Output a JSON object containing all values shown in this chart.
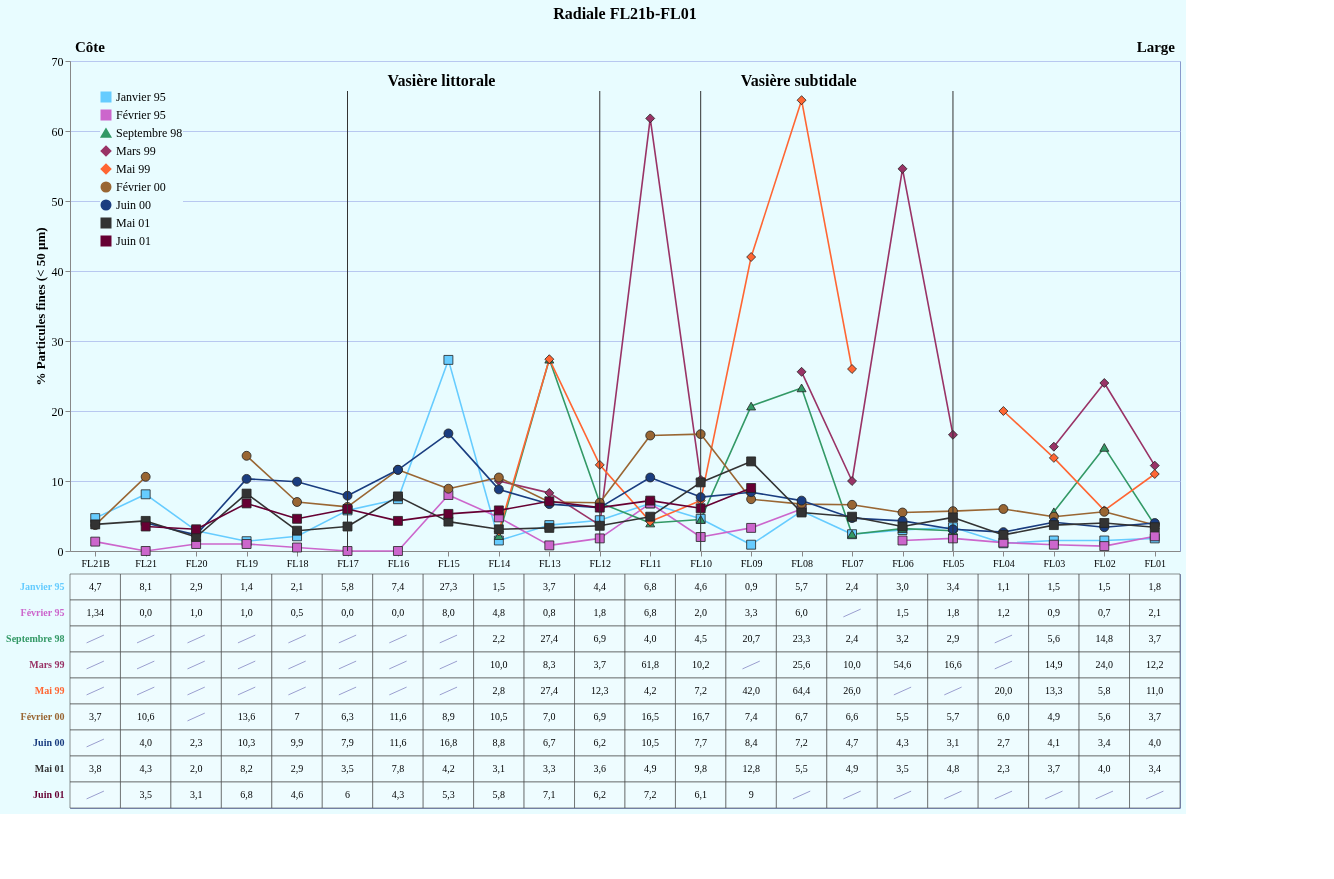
{
  "chart_data": {
    "type": "line",
    "title": "Radiale FL21b-FL01",
    "ylabel": "% Particules fines (< 50 µm)",
    "annotations": [
      "Côte",
      "Large"
    ],
    "categories": [
      "FL21B",
      "FL21",
      "FL20",
      "FL19",
      "FL18",
      "FL17",
      "FL16",
      "FL15",
      "FL14",
      "FL13",
      "FL12",
      "FL11",
      "FL10",
      "FL09",
      "FL08",
      "FL07",
      "FL06",
      "FL05",
      "FL04",
      "FL03",
      "FL02",
      "FL01"
    ],
    "series": [
      {
        "name": "Janvier 95",
        "color": "#66ccff",
        "marker": "square",
        "values": [
          4.7,
          8.1,
          2.9,
          1.4,
          2.1,
          5.8,
          7.4,
          27.3,
          1.5,
          3.7,
          4.4,
          6.8,
          4.6,
          0.9,
          5.7,
          2.4,
          3.0,
          3.4,
          1.1,
          1.5,
          1.5,
          1.8
        ],
        "value_labels": [
          "4,7",
          "8,1",
          "2,9",
          "1,4",
          "2,1",
          "5,8",
          "7,4",
          "27,3",
          "1,5",
          "3,7",
          "4,4",
          "6,8",
          "4,6",
          "0,9",
          "5,7",
          "2,4",
          "3,0",
          "3,4",
          "1,1",
          "1,5",
          "1,5",
          "1,8"
        ]
      },
      {
        "name": "Février 95",
        "color": "#cc66cc",
        "marker": "square",
        "values": [
          1.34,
          0.0,
          1.0,
          1.0,
          0.5,
          0.0,
          0.0,
          8.0,
          4.8,
          0.8,
          1.8,
          6.8,
          2.0,
          3.3,
          6.0,
          null,
          1.5,
          1.8,
          1.2,
          0.9,
          0.7,
          2.1
        ],
        "value_labels": [
          "1,34",
          "0,0",
          "1,0",
          "1,0",
          "0,5",
          "0,0",
          "0,0",
          "8,0",
          "4,8",
          "0,8",
          "1,8",
          "6,8",
          "2,0",
          "3,3",
          "6,0",
          null,
          "1,5",
          "1,8",
          "1,2",
          "0,9",
          "0,7",
          "2,1"
        ]
      },
      {
        "name": "Septembre 98",
        "color": "#339966",
        "marker": "triangle",
        "values": [
          null,
          null,
          null,
          null,
          null,
          null,
          null,
          null,
          2.2,
          27.4,
          6.9,
          4.0,
          4.5,
          20.7,
          23.3,
          2.4,
          3.2,
          2.9,
          null,
          5.6,
          14.8,
          3.7
        ],
        "value_labels": [
          null,
          null,
          null,
          null,
          null,
          null,
          null,
          null,
          "2,2",
          "27,4",
          "6,9",
          "4,0",
          "4,5",
          "20,7",
          "23,3",
          "2,4",
          "3,2",
          "2,9",
          null,
          "5,6",
          "14,8",
          "3,7"
        ]
      },
      {
        "name": "Mars 99",
        "color": "#993366",
        "marker": "diamond",
        "values": [
          null,
          null,
          null,
          null,
          null,
          null,
          null,
          null,
          10.0,
          8.3,
          3.7,
          61.8,
          10.2,
          null,
          25.6,
          10.0,
          54.6,
          16.6,
          null,
          14.9,
          24.0,
          12.2
        ],
        "value_labels": [
          null,
          null,
          null,
          null,
          null,
          null,
          null,
          null,
          "10,0",
          "8,3",
          "3,7",
          "61,8",
          "10,2",
          null,
          "25,6",
          "10,0",
          "54,6",
          "16,6",
          null,
          "14,9",
          "24,0",
          "12,2"
        ]
      },
      {
        "name": "Mai 99",
        "color": "#ff6633",
        "marker": "diamond",
        "values": [
          null,
          null,
          null,
          null,
          null,
          null,
          null,
          null,
          2.8,
          27.4,
          12.3,
          4.2,
          7.2,
          42.0,
          64.4,
          26.0,
          null,
          null,
          20.0,
          13.3,
          5.8,
          11.0
        ],
        "value_labels": [
          null,
          null,
          null,
          null,
          null,
          null,
          null,
          null,
          "2,8",
          "27,4",
          "12,3",
          "4,2",
          "7,2",
          "42,0",
          "64,4",
          "26,0",
          null,
          null,
          "20,0",
          "13,3",
          "5,8",
          "11,0"
        ]
      },
      {
        "name": "Février 00",
        "color": "#996633",
        "marker": "circle",
        "values": [
          3.7,
          10.6,
          null,
          13.6,
          7,
          6.3,
          11.6,
          8.9,
          10.5,
          7.0,
          6.9,
          16.5,
          16.7,
          7.4,
          6.7,
          6.6,
          5.5,
          5.7,
          6.0,
          4.9,
          5.6,
          3.7
        ],
        "value_labels": [
          "3,7",
          "10,6",
          null,
          "13,6",
          "7",
          "6,3",
          "11,6",
          "8,9",
          "10,5",
          "7,0",
          "6,9",
          "16,5",
          "16,7",
          "7,4",
          "6,7",
          "6,6",
          "5,5",
          "5,7",
          "6,0",
          "4,9",
          "5,6",
          "3,7"
        ]
      },
      {
        "name": "Juin 00",
        "color": "#1a3d80",
        "marker": "circle",
        "values": [
          null,
          4.0,
          2.3,
          10.3,
          9.9,
          7.9,
          11.6,
          16.8,
          8.8,
          6.7,
          6.2,
          10.5,
          7.7,
          8.4,
          7.2,
          4.7,
          4.3,
          3.1,
          2.7,
          4.1,
          3.4,
          4.0
        ],
        "value_labels": [
          null,
          "4,0",
          "2,3",
          "10,3",
          "9,9",
          "7,9",
          "11,6",
          "16,8",
          "8,8",
          "6,7",
          "6,2",
          "10,5",
          "7,7",
          "8,4",
          "7,2",
          "4,7",
          "4,3",
          "3,1",
          "2,7",
          "4,1",
          "3,4",
          "4,0"
        ]
      },
      {
        "name": "Mai 01",
        "color": "#333333",
        "marker": "square",
        "values": [
          3.8,
          4.3,
          2.0,
          8.2,
          2.9,
          3.5,
          7.8,
          4.2,
          3.1,
          3.3,
          3.6,
          4.9,
          9.8,
          12.8,
          5.5,
          4.9,
          3.5,
          4.8,
          2.3,
          3.7,
          4.0,
          3.4
        ],
        "value_labels": [
          "3,8",
          "4,3",
          "2,0",
          "8,2",
          "2,9",
          "3,5",
          "7,8",
          "4,2",
          "3,1",
          "3,3",
          "3,6",
          "4,9",
          "9,8",
          "12,8",
          "5,5",
          "4,9",
          "3,5",
          "4,8",
          "2,3",
          "3,7",
          "4,0",
          "3,4"
        ]
      },
      {
        "name": "Juin 01",
        "color": "#660033",
        "marker": "square",
        "values": [
          null,
          3.5,
          3.1,
          6.8,
          4.6,
          6,
          4.3,
          5.3,
          5.8,
          7.1,
          6.2,
          7.2,
          6.1,
          9,
          null,
          null,
          null,
          null,
          null,
          null,
          null,
          null
        ],
        "value_labels": [
          null,
          "3,5",
          "3,1",
          "6,8",
          "4,6",
          "6",
          "4,3",
          "5,3",
          "5,8",
          "7,1",
          "6,2",
          "7,2",
          "6,1",
          "9",
          null,
          null,
          null,
          null,
          null,
          null,
          null,
          null
        ]
      }
    ],
    "ref_lines": [
      {
        "axis": "x",
        "value": "FL17",
        "label": "Vasière littorale"
      },
      {
        "axis": "x",
        "value": "FL12"
      },
      {
        "axis": "x",
        "value": "FL10",
        "label": "Vasière subtidale"
      },
      {
        "axis": "x",
        "value": "FL05"
      }
    ],
    "ylim": [
      0,
      70
    ],
    "yticks": [
      0,
      10,
      20,
      30,
      40,
      50,
      60,
      70
    ],
    "grid": "y",
    "legend": "top left"
  }
}
